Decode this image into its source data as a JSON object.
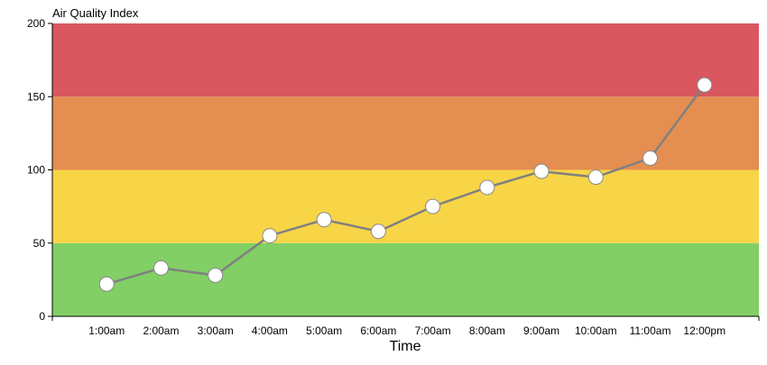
{
  "chart_data": {
    "type": "line",
    "ylabel": "Air Quality Index",
    "xlabel": "Time",
    "ylim": [
      0,
      200
    ],
    "yticks": [
      0,
      50,
      100,
      150,
      200
    ],
    "categories": [
      "1:00am",
      "2:00am",
      "3:00am",
      "4:00am",
      "5:00am",
      "6:00am",
      "7:00am",
      "8:00am",
      "9:00am",
      "10:00am",
      "11:00am",
      "12:00pm"
    ],
    "values": [
      22,
      33,
      28,
      55,
      66,
      58,
      75,
      88,
      99,
      95,
      108,
      158
    ],
    "series_color": "#808080",
    "marker_color": "#ffffff",
    "bands": [
      {
        "from": 0,
        "to": 50,
        "color": "#81cf65"
      },
      {
        "from": 50,
        "to": 100,
        "color": "#f7d547"
      },
      {
        "from": 100,
        "to": 150,
        "color": "#e48e51"
      },
      {
        "from": 150,
        "to": 200,
        "color": "#d9575f"
      }
    ],
    "grid": false,
    "legend": "none"
  }
}
